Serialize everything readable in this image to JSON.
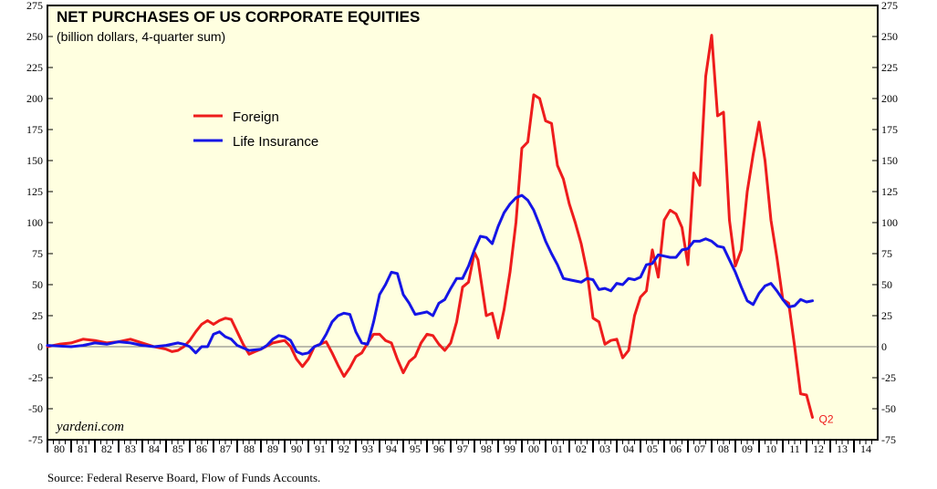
{
  "chart_data": {
    "type": "line",
    "title": "NET PURCHASES OF US CORPORATE EQUITIES",
    "subtitle": "(billion dollars, 4-quarter sum)",
    "source": "Source: Federal Reserve Board, Flow of Funds Accounts.",
    "watermark": "yardeni.com",
    "annotation": "Q2",
    "ylim": [
      -75,
      275
    ],
    "xlim": [
      1980,
      2015
    ],
    "y_ticks": [
      "275",
      "250",
      "225",
      "200",
      "175",
      "150",
      "125",
      "100",
      "75",
      "50",
      "25",
      "0",
      "-25",
      "-50",
      "-75"
    ],
    "x_tick_labels": [
      "80",
      "81",
      "82",
      "83",
      "84",
      "85",
      "86",
      "87",
      "88",
      "89",
      "90",
      "91",
      "92",
      "93",
      "94",
      "95",
      "96",
      "97",
      "98",
      "99",
      "00",
      "01",
      "02",
      "03",
      "04",
      "05",
      "06",
      "07",
      "08",
      "09",
      "10",
      "11",
      "12",
      "13",
      "14"
    ],
    "grid": false,
    "zero_line": true,
    "legend_position": "upper-left",
    "background": "#ffffe0",
    "series": [
      {
        "name": "Foreign",
        "color": "#ee1c1c",
        "points": [
          [
            1980.0,
            0
          ],
          [
            1980.5,
            2
          ],
          [
            1981.0,
            3
          ],
          [
            1981.5,
            6
          ],
          [
            1982.0,
            5
          ],
          [
            1982.5,
            3
          ],
          [
            1983.0,
            4
          ],
          [
            1983.5,
            6
          ],
          [
            1984.0,
            3
          ],
          [
            1984.5,
            0
          ],
          [
            1985.0,
            -2
          ],
          [
            1985.25,
            -4
          ],
          [
            1985.5,
            -3
          ],
          [
            1985.75,
            0
          ],
          [
            1986.0,
            5
          ],
          [
            1986.25,
            12
          ],
          [
            1986.5,
            18
          ],
          [
            1986.75,
            21
          ],
          [
            1987.0,
            18
          ],
          [
            1987.25,
            21
          ],
          [
            1987.5,
            23
          ],
          [
            1987.75,
            22
          ],
          [
            1988.0,
            12
          ],
          [
            1988.25,
            2
          ],
          [
            1988.5,
            -6
          ],
          [
            1988.75,
            -4
          ],
          [
            1989.0,
            -2
          ],
          [
            1989.5,
            3
          ],
          [
            1990.0,
            5
          ],
          [
            1990.25,
            0
          ],
          [
            1990.5,
            -10
          ],
          [
            1990.75,
            -16
          ],
          [
            1991.0,
            -10
          ],
          [
            1991.25,
            0
          ],
          [
            1991.5,
            2
          ],
          [
            1991.75,
            4
          ],
          [
            1992.0,
            -5
          ],
          [
            1992.25,
            -15
          ],
          [
            1992.5,
            -24
          ],
          [
            1992.75,
            -17
          ],
          [
            1993.0,
            -8
          ],
          [
            1993.25,
            -5
          ],
          [
            1993.5,
            3
          ],
          [
            1993.75,
            10
          ],
          [
            1994.0,
            10
          ],
          [
            1994.25,
            5
          ],
          [
            1994.5,
            3
          ],
          [
            1994.75,
            -10
          ],
          [
            1995.0,
            -21
          ],
          [
            1995.25,
            -12
          ],
          [
            1995.5,
            -8
          ],
          [
            1995.75,
            3
          ],
          [
            1996.0,
            10
          ],
          [
            1996.25,
            9
          ],
          [
            1996.5,
            2
          ],
          [
            1996.75,
            -3
          ],
          [
            1997.0,
            3
          ],
          [
            1997.25,
            20
          ],
          [
            1997.5,
            48
          ],
          [
            1997.75,
            52
          ],
          [
            1998.0,
            76
          ],
          [
            1998.15,
            70
          ],
          [
            1998.5,
            25
          ],
          [
            1998.75,
            27
          ],
          [
            1999.0,
            7
          ],
          [
            1999.25,
            30
          ],
          [
            1999.5,
            60
          ],
          [
            1999.75,
            100
          ],
          [
            2000.0,
            160
          ],
          [
            2000.25,
            165
          ],
          [
            2000.5,
            203
          ],
          [
            2000.75,
            200
          ],
          [
            2001.0,
            182
          ],
          [
            2001.25,
            180
          ],
          [
            2001.5,
            146
          ],
          [
            2001.75,
            135
          ],
          [
            2002.0,
            115
          ],
          [
            2002.25,
            100
          ],
          [
            2002.5,
            83
          ],
          [
            2002.75,
            60
          ],
          [
            2003.0,
            23
          ],
          [
            2003.25,
            20
          ],
          [
            2003.5,
            2
          ],
          [
            2003.75,
            5
          ],
          [
            2004.0,
            6
          ],
          [
            2004.25,
            -9
          ],
          [
            2004.5,
            -3
          ],
          [
            2004.75,
            25
          ],
          [
            2005.0,
            40
          ],
          [
            2005.25,
            45
          ],
          [
            2005.5,
            78
          ],
          [
            2005.75,
            56
          ],
          [
            2006.0,
            102
          ],
          [
            2006.25,
            110
          ],
          [
            2006.5,
            107
          ],
          [
            2006.75,
            96
          ],
          [
            2007.0,
            66
          ],
          [
            2007.25,
            140
          ],
          [
            2007.5,
            130
          ],
          [
            2007.75,
            218
          ],
          [
            2008.0,
            251
          ],
          [
            2008.25,
            186
          ],
          [
            2008.5,
            189
          ],
          [
            2008.75,
            102
          ],
          [
            2009.0,
            65
          ],
          [
            2009.25,
            78
          ],
          [
            2009.5,
            125
          ],
          [
            2009.75,
            155
          ],
          [
            2010.0,
            181
          ],
          [
            2010.25,
            150
          ],
          [
            2010.5,
            102
          ],
          [
            2010.75,
            72
          ],
          [
            2011.0,
            38
          ],
          [
            2011.25,
            35
          ],
          [
            2011.5,
            0
          ],
          [
            2011.75,
            -38
          ],
          [
            2012.0,
            -39
          ],
          [
            2012.25,
            -57
          ]
        ]
      },
      {
        "name": "Life Insurance",
        "color": "#1515e6",
        "points": [
          [
            1980.0,
            1
          ],
          [
            1981.0,
            0
          ],
          [
            1981.5,
            1
          ],
          [
            1982.0,
            3
          ],
          [
            1982.5,
            2
          ],
          [
            1983.0,
            4
          ],
          [
            1983.5,
            3
          ],
          [
            1984.0,
            1
          ],
          [
            1984.5,
            0
          ],
          [
            1985.0,
            1
          ],
          [
            1985.5,
            3
          ],
          [
            1985.75,
            2
          ],
          [
            1986.0,
            0
          ],
          [
            1986.25,
            -5
          ],
          [
            1986.5,
            0
          ],
          [
            1986.75,
            0
          ],
          [
            1987.0,
            10
          ],
          [
            1987.25,
            12
          ],
          [
            1987.5,
            8
          ],
          [
            1987.75,
            6
          ],
          [
            1988.0,
            1
          ],
          [
            1988.5,
            -3
          ],
          [
            1989.0,
            -2
          ],
          [
            1989.25,
            1
          ],
          [
            1989.5,
            6
          ],
          [
            1989.75,
            9
          ],
          [
            1990.0,
            8
          ],
          [
            1990.25,
            5
          ],
          [
            1990.5,
            -4
          ],
          [
            1990.75,
            -6
          ],
          [
            1991.0,
            -5
          ],
          [
            1991.25,
            0
          ],
          [
            1991.5,
            2
          ],
          [
            1991.75,
            10
          ],
          [
            1992.0,
            20
          ],
          [
            1992.25,
            25
          ],
          [
            1992.5,
            27
          ],
          [
            1992.75,
            26
          ],
          [
            1993.0,
            12
          ],
          [
            1993.25,
            3
          ],
          [
            1993.5,
            2
          ],
          [
            1993.75,
            20
          ],
          [
            1994.0,
            42
          ],
          [
            1994.25,
            50
          ],
          [
            1994.5,
            60
          ],
          [
            1994.75,
            59
          ],
          [
            1995.0,
            42
          ],
          [
            1995.25,
            35
          ],
          [
            1995.5,
            26
          ],
          [
            1995.75,
            27
          ],
          [
            1996.0,
            28
          ],
          [
            1996.25,
            25
          ],
          [
            1996.5,
            35
          ],
          [
            1996.75,
            38
          ],
          [
            1997.0,
            47
          ],
          [
            1997.25,
            55
          ],
          [
            1997.5,
            55
          ],
          [
            1997.75,
            65
          ],
          [
            1998.0,
            78
          ],
          [
            1998.25,
            89
          ],
          [
            1998.5,
            88
          ],
          [
            1998.75,
            83
          ],
          [
            1999.0,
            97
          ],
          [
            1999.25,
            108
          ],
          [
            1999.5,
            115
          ],
          [
            1999.75,
            120
          ],
          [
            2000.0,
            122
          ],
          [
            2000.25,
            118
          ],
          [
            2000.5,
            110
          ],
          [
            2000.75,
            98
          ],
          [
            2001.0,
            85
          ],
          [
            2001.25,
            75
          ],
          [
            2001.5,
            66
          ],
          [
            2001.75,
            55
          ],
          [
            2002.0,
            54
          ],
          [
            2002.5,
            52
          ],
          [
            2002.75,
            55
          ],
          [
            2003.0,
            54
          ],
          [
            2003.25,
            46
          ],
          [
            2003.5,
            47
          ],
          [
            2003.75,
            45
          ],
          [
            2004.0,
            51
          ],
          [
            2004.25,
            50
          ],
          [
            2004.5,
            55
          ],
          [
            2004.75,
            54
          ],
          [
            2005.0,
            56
          ],
          [
            2005.25,
            66
          ],
          [
            2005.5,
            67
          ],
          [
            2005.75,
            74
          ],
          [
            2006.0,
            73
          ],
          [
            2006.25,
            72
          ],
          [
            2006.5,
            72
          ],
          [
            2006.75,
            78
          ],
          [
            2007.0,
            79
          ],
          [
            2007.25,
            85
          ],
          [
            2007.5,
            85
          ],
          [
            2007.75,
            87
          ],
          [
            2008.0,
            85
          ],
          [
            2008.25,
            81
          ],
          [
            2008.5,
            80
          ],
          [
            2008.75,
            70
          ],
          [
            2009.0,
            60
          ],
          [
            2009.25,
            48
          ],
          [
            2009.5,
            37
          ],
          [
            2009.75,
            34
          ],
          [
            2010.0,
            43
          ],
          [
            2010.25,
            49
          ],
          [
            2010.5,
            51
          ],
          [
            2010.75,
            45
          ],
          [
            2011.0,
            38
          ],
          [
            2011.25,
            32
          ],
          [
            2011.5,
            33
          ],
          [
            2011.75,
            38
          ],
          [
            2012.0,
            36
          ],
          [
            2012.25,
            37
          ]
        ]
      }
    ]
  }
}
